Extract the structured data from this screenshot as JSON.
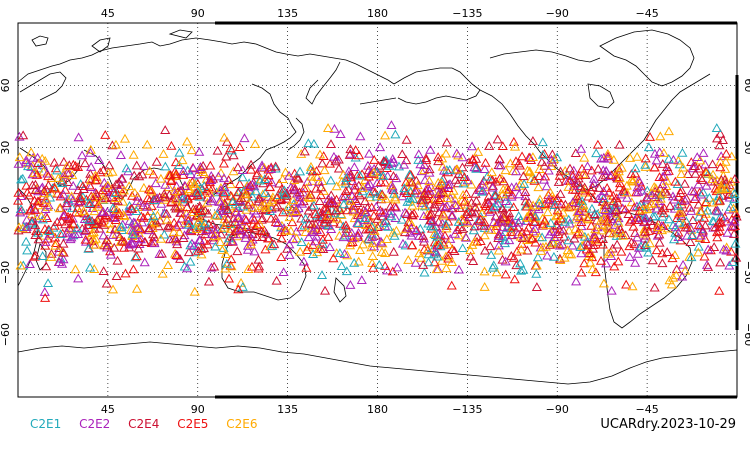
{
  "map": {
    "projection": "equirectangular",
    "central_longitude": 180,
    "lat_range": [
      -90,
      90
    ],
    "grid": "dotted",
    "x_ticks": [
      "45",
      "90",
      "135",
      "180",
      "−135",
      "−90",
      "−45"
    ],
    "x_tick_lons": [
      45,
      90,
      135,
      180,
      225,
      270,
      315
    ],
    "y_ticks_left": [
      "60",
      "30",
      "0",
      "−30",
      "−60"
    ],
    "y_ticks_right": [
      "60",
      "30",
      "0",
      "−30",
      "−60"
    ],
    "y_tick_lats": [
      60,
      30,
      0,
      -30,
      -60
    ],
    "marker_shape": "triangle",
    "observation_band_lat": [
      -45,
      45
    ]
  },
  "legend": [
    {
      "label": "C2E1",
      "color": "#22aabb"
    },
    {
      "label": "C2E2",
      "color": "#aa22bb"
    },
    {
      "label": "C2E4",
      "color": "#cc1133"
    },
    {
      "label": "C2E5",
      "color": "#ee1111"
    },
    {
      "label": "C2E6",
      "color": "#ffaa00"
    }
  ],
  "stamp": "UCARdry.2023-10-29"
}
